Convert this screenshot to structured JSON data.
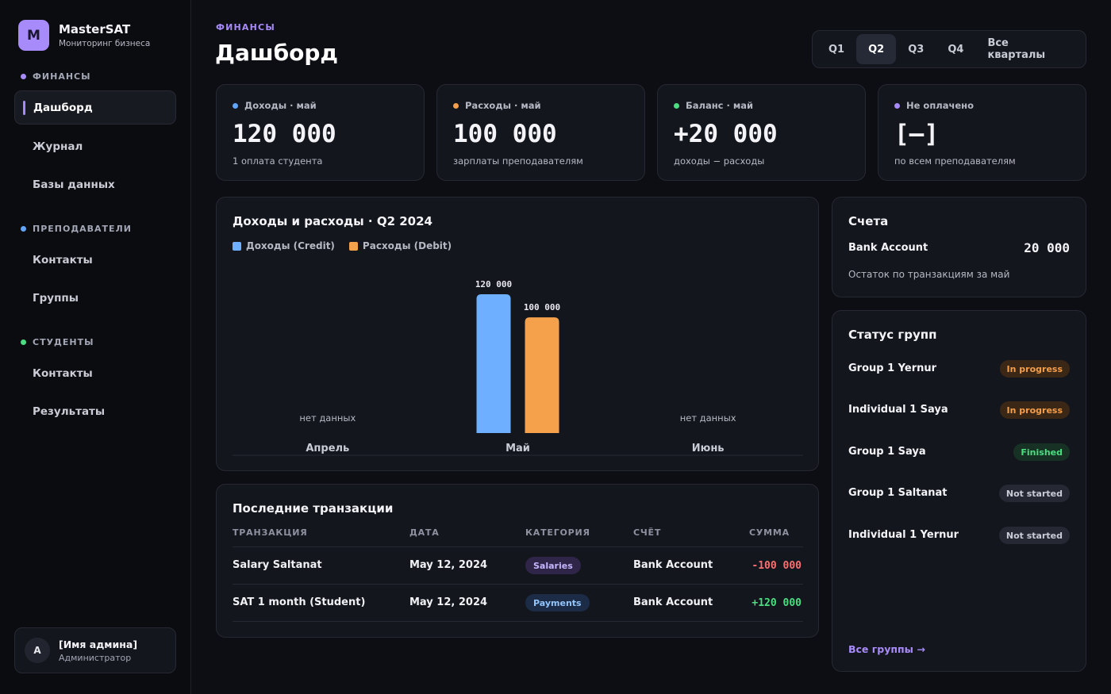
{
  "brand": {
    "logo": "M",
    "name": "MasterSAT",
    "subtitle": "Мониторинг бизнеса"
  },
  "sidebar": {
    "sections": [
      {
        "title": "ФИНАНСЫ",
        "color": "#a78bfa",
        "items": [
          "Дашборд",
          "Журнал",
          "Базы данных"
        ]
      },
      {
        "title": "ПРЕПОДАВАТЕЛИ",
        "color": "#60a5fa",
        "items": [
          "Контакты",
          "Группы"
        ]
      },
      {
        "title": "СТУДЕНТЫ",
        "color": "#4ade80",
        "items": [
          "Контакты",
          "Результаты"
        ]
      }
    ],
    "active_item": "Дашборд"
  },
  "user": {
    "initial": "A",
    "name": "[Имя админа]",
    "role": "Администратор"
  },
  "header": {
    "eyebrow": "ФИНАНСЫ",
    "title": "Дашборд"
  },
  "quarters": {
    "options": [
      "Q1",
      "Q2",
      "Q3",
      "Q4",
      "Все кварталы"
    ],
    "selected": "Q2"
  },
  "kpis": [
    {
      "label": "Доходы · май",
      "value": "120 000",
      "sub": "1 оплата студента",
      "dot_color": "#60a5fa"
    },
    {
      "label": "Расходы · май",
      "value": "100 000",
      "sub": "зарплаты преподавателям",
      "dot_color": "#f59e4b"
    },
    {
      "label": "Баланс · май",
      "value": "+20 000",
      "sub": "доходы − расходы",
      "dot_color": "#4ade80"
    },
    {
      "label": "Не оплачено",
      "value": "[—]",
      "sub": "по всем преподавателям",
      "dot_color": "#a78bfa"
    }
  ],
  "chart_data": {
    "type": "bar",
    "title": "Доходы и расходы · Q2 2024",
    "categories": [
      "Апрель",
      "Май",
      "Июнь"
    ],
    "series": [
      {
        "name": "Доходы (Credit)",
        "values": [
          null,
          120000,
          null
        ],
        "color": "#6eb0ff"
      },
      {
        "name": "Расходы (Debit)",
        "values": [
          null,
          100000,
          null
        ],
        "color": "#f5a04b"
      }
    ],
    "value_labels": [
      "120 000",
      "100 000"
    ],
    "empty_label": "нет данных",
    "ylim": [
      0,
      120000
    ],
    "legend": "top-left",
    "grid": false
  },
  "transactions": {
    "title": "Последние транзакции",
    "columns": [
      "ТРАНЗАКЦИЯ",
      "ДАТА",
      "КАТЕГОРИЯ",
      "СЧЁТ",
      "СУММА"
    ],
    "rows": [
      {
        "name": "Salary Saltanat",
        "date": "May 12, 2024",
        "category": "Salaries",
        "account": "Bank Account",
        "amount": "-100 000",
        "amount_color": "#f87171",
        "cat_color": "#c4b5fd",
        "cat_bg": "#2e2548"
      },
      {
        "name": "SAT 1 month (Student)",
        "date": "May 12, 2024",
        "category": "Payments",
        "account": "Bank Account",
        "amount": "+120 000",
        "amount_color": "#4ade80",
        "cat_color": "#93c5fd",
        "cat_bg": "#1c2c46"
      }
    ]
  },
  "accounts": {
    "title": "Счета",
    "name": "Bank Account",
    "value": "20 000",
    "sub": "Остаток по транзакциям за май"
  },
  "groups": {
    "title": "Статус групп",
    "items": [
      {
        "name": "Group 1 Yernur",
        "status": "In progress",
        "color": "#f59e4b",
        "bg": "#3a2716"
      },
      {
        "name": "Individual 1 Saya",
        "status": "In progress",
        "color": "#f59e4b",
        "bg": "#3a2716"
      },
      {
        "name": "Group 1 Saya",
        "status": "Finished",
        "color": "#4ade80",
        "bg": "#173224"
      },
      {
        "name": "Group 1 Saltanat",
        "status": "Not started",
        "color": "#c9cbd5",
        "bg": "#262933"
      },
      {
        "name": "Individual 1 Yernur",
        "status": "Not started",
        "color": "#c9cbd5",
        "bg": "#262933"
      }
    ],
    "link": "Все группы →"
  }
}
